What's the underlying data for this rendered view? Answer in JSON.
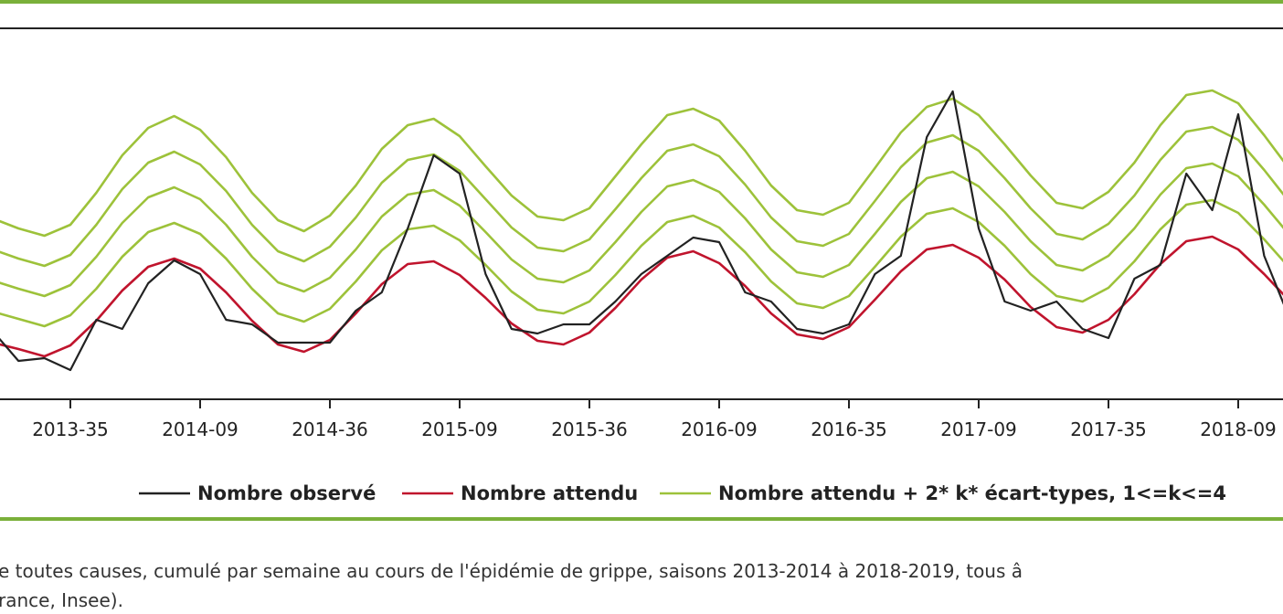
{
  "chart_data": {
    "type": "line",
    "categories": [
      null,
      null,
      null,
      "2013-35",
      null,
      null,
      null,
      null,
      "2014-09",
      null,
      null,
      null,
      null,
      "2014-36",
      null,
      null,
      null,
      null,
      "2015-09",
      null,
      null,
      null,
      null,
      "2015-36",
      null,
      null,
      null,
      null,
      "2016-09",
      null,
      null,
      null,
      null,
      "2016-35",
      null,
      null,
      null,
      null,
      "2017-09",
      null,
      null,
      null,
      null,
      "2017-35",
      null,
      null,
      null,
      null,
      "2018-09",
      null,
      null
    ],
    "ylim": [
      0,
      406
    ],
    "series": [
      {
        "name": "Nombre observé",
        "color": "#222222",
        "values": [
          75,
          42,
          45,
          32,
          87,
          77,
          127,
          152,
          137,
          87,
          82,
          62,
          62,
          62,
          97,
          117,
          187,
          267,
          247,
          137,
          77,
          72,
          82,
          82,
          107,
          137,
          157,
          177,
          172,
          117,
          107,
          77,
          72,
          82,
          137,
          157,
          287,
          337,
          187,
          107,
          97,
          107,
          77,
          67,
          132,
          147,
          247,
          207,
          312,
          157,
          87
        ]
      },
      {
        "name": "Nombre attendu",
        "color": "#c0142d",
        "values": [
          62,
          55,
          47,
          59,
          86,
          119,
          145,
          154,
          143,
          117,
          86,
          60,
          52,
          65,
          94,
          126,
          148,
          151,
          136,
          111,
          83,
          64,
          60,
          73,
          100,
          131,
          155,
          162,
          149,
          124,
          94,
          71,
          66,
          79,
          109,
          140,
          164,
          169,
          155,
          131,
          101,
          79,
          73,
          87,
          115,
          148,
          173,
          178,
          164,
          137,
          107
        ]
      },
      {
        "name": "Nombre attendu + 2* k* écart-types, 1<=k<=4",
        "color": "#9dc23a",
        "lines": [
          [
            96,
            88,
            80,
            92,
            121,
            156,
            183,
            193,
            181,
            154,
            121,
            94,
            85,
            99,
            129,
            163,
            186,
            190,
            174,
            147,
            118,
            98,
            94,
            107,
            136,
            168,
            194,
            201,
            188,
            161,
            129,
            105,
            100,
            113,
            145,
            178,
            203,
            209,
            194,
            168,
            137,
            113,
            107,
            122,
            151,
            186,
            213,
            218,
            204,
            175,
            143
          ],
          [
            130,
            121,
            113,
            125,
            156,
            193,
            221,
            232,
            219,
            191,
            156,
            128,
            118,
            133,
            164,
            200,
            224,
            229,
            212,
            183,
            153,
            132,
            128,
            141,
            172,
            205,
            233,
            240,
            227,
            198,
            164,
            139,
            134,
            147,
            181,
            216,
            242,
            249,
            233,
            205,
            173,
            147,
            141,
            157,
            187,
            224,
            253,
            258,
            244,
            213,
            179
          ],
          [
            164,
            154,
            146,
            158,
            191,
            230,
            259,
            271,
            257,
            228,
            191,
            162,
            151,
            167,
            199,
            237,
            262,
            268,
            250,
            219,
            188,
            166,
            162,
            175,
            208,
            242,
            272,
            279,
            266,
            235,
            199,
            173,
            168,
            181,
            217,
            254,
            281,
            289,
            272,
            242,
            209,
            181,
            175,
            192,
            223,
            262,
            293,
            298,
            284,
            251,
            215
          ],
          [
            198,
            187,
            179,
            191,
            226,
            267,
            297,
            310,
            295,
            265,
            226,
            196,
            184,
            201,
            234,
            274,
            300,
            307,
            288,
            255,
            223,
            200,
            196,
            209,
            244,
            279,
            311,
            318,
            305,
            272,
            234,
            207,
            202,
            215,
            253,
            292,
            320,
            329,
            311,
            279,
            245,
            215,
            209,
            227,
            259,
            300,
            333,
            338,
            324,
            289,
            251
          ]
        ]
      }
    ],
    "caption": [
      "e toutes causes, cumulé par semaine au cours de l'épidémie de grippe, saisons 2013-2014 à 2018-2019, tous â",
      "rance, Insee)."
    ]
  }
}
